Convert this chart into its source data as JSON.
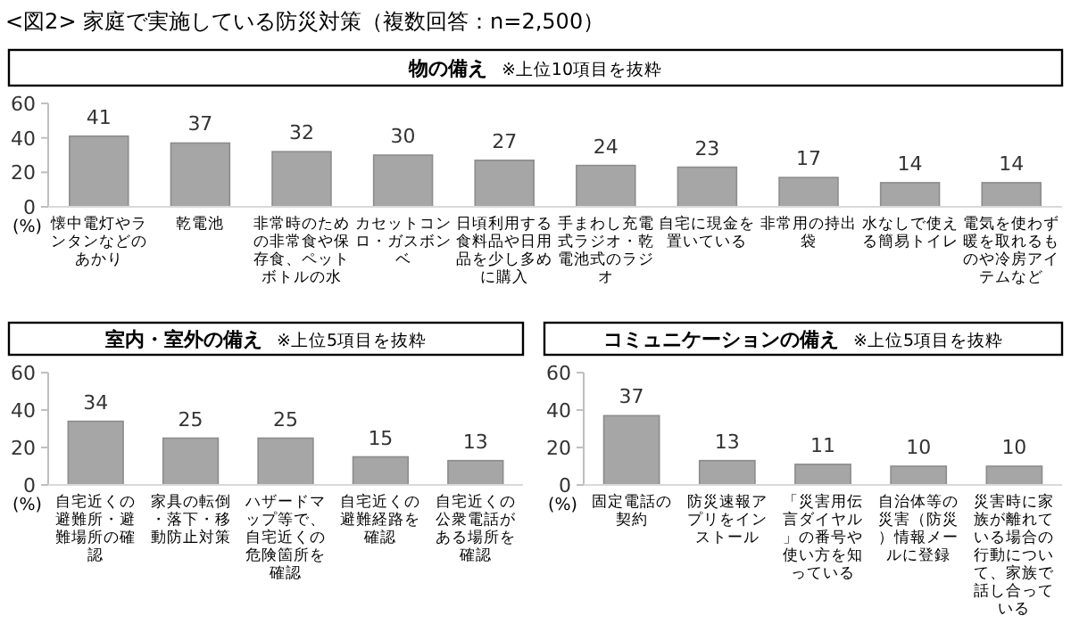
{
  "chart_data": [
    {
      "type": "bar",
      "title": "物の備え",
      "subtitle": "※上位10項目を抜粋",
      "annotations": [
        "<図2> 家庭で実施している防災対策（複数回答：n=2,500）"
      ],
      "ylabel": "(%)",
      "categories": [
        "懐中電灯やランタンなどのあかり",
        "乾電池",
        "非常時のための非常食や保存食、ペットボトルの水",
        "カセットコンロ・ガスボンベ",
        "日頃利用する食料品や日用品を少し多めに購入",
        "手まわし充電式ラジオ・乾電池式のラジオ",
        "自宅に現金を置いている",
        "非常用の持出袋",
        "水なしで使える簡易トイレ",
        "電気を使わず暖を取れるものや冷房アイテムなど"
      ],
      "values": [
        41,
        37,
        32,
        30,
        27,
        24,
        23,
        17,
        14,
        14
      ],
      "color": "#a6a6a6",
      "ylim": [
        0,
        60
      ],
      "yticks": [
        0,
        20,
        40,
        60
      ],
      "data_labels": true
    },
    {
      "type": "bar",
      "title": "室内・室外の備え",
      "subtitle": "※上位5項目を抜粋",
      "ylabel": "(%)",
      "categories": [
        "自宅近くの避難所・避難場所の確認",
        "家具の転倒・落下・移動防止対策",
        "ハザードマップ等で、自宅近くの危険箇所を確認",
        "自宅近くの避難経路を確認",
        "自宅近くの公衆電話がある場所を確認"
      ],
      "values": [
        34,
        25,
        25,
        15,
        13
      ],
      "color": "#a6a6a6",
      "ylim": [
        0,
        60
      ],
      "yticks": [
        0,
        20,
        40,
        60
      ],
      "data_labels": true
    },
    {
      "type": "bar",
      "title": "コミュニケーションの備え",
      "subtitle": "※上位5項目を抜粋",
      "ylabel": "(%)",
      "categories": [
        "固定電話の契約",
        "防災速報アプリをインストール",
        "「災害用伝言ダイヤル」の番号や使い方を知っている",
        "自治体等の災害（防災）情報メールに登録",
        "災害時に家族が離れている場合の行動について、家族で話し合っている"
      ],
      "values": [
        37,
        13,
        11,
        10,
        10
      ],
      "color": "#a6a6a6",
      "ylim": [
        0,
        60
      ],
      "yticks": [
        0,
        20,
        40,
        60
      ],
      "data_labels": true
    }
  ]
}
